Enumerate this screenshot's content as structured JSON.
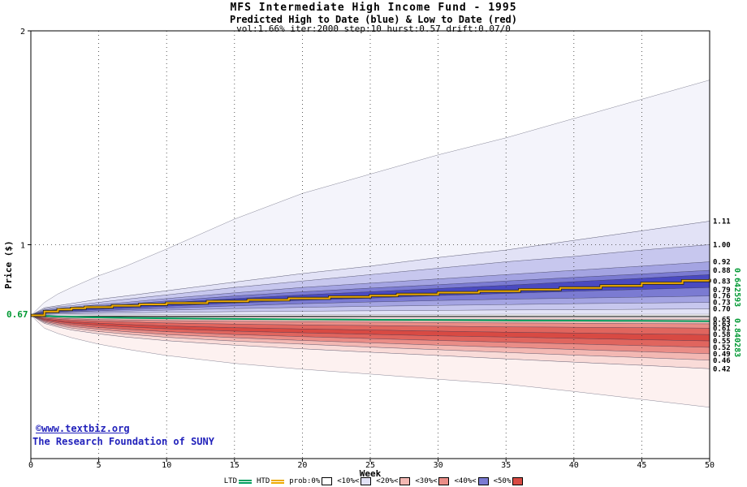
{
  "title": {
    "line1": "MFS Intermediate High Income Fund - 1995",
    "line2": "Predicted High to Date (blue) &  Low to Date (red)",
    "line3": "vol:1.66% iter:2000 step:10 hurst:0.57 drift:0.07/0"
  },
  "footer": {
    "copyright": "©www.textbiz.org",
    "org": "The Research Foundation of SUNY"
  },
  "chart_data": {
    "type": "area",
    "title": "MFS Intermediate High Income Fund - 1995",
    "subtitle": "Predicted High to Date (blue) &  Low to Date (red)",
    "params": "vol:1.66% iter:2000 step:10 hurst:0.57 drift:0.07/0",
    "xlabel": "Week",
    "ylabel": "Price ($)",
    "xlim": [
      0,
      50
    ],
    "ylim": [
      0,
      2
    ],
    "x_ticks": [
      0,
      5,
      10,
      15,
      20,
      25,
      30,
      35,
      40,
      45,
      50
    ],
    "y_ticks": [
      0,
      1,
      2
    ],
    "grid": true,
    "start_price": 0.67,
    "start_price_label": "0.67",
    "center_line_price": 0.665,
    "band_x": [
      0,
      1,
      2,
      3,
      5,
      7,
      10,
      15,
      20,
      25,
      30,
      35,
      40,
      45,
      50
    ],
    "high_fan": {
      "name": "high-to-date probability fan (blue)",
      "boundaries": [
        [
          0.67,
          0.73,
          0.77,
          0.8,
          0.855,
          0.9,
          0.98,
          1.12,
          1.24,
          1.33,
          1.42,
          1.5,
          1.59,
          1.68,
          1.77
        ],
        [
          0.67,
          0.705,
          0.715,
          0.725,
          0.745,
          0.76,
          0.785,
          0.825,
          0.865,
          0.9,
          0.94,
          0.975,
          1.02,
          1.065,
          1.11
        ],
        [
          0.67,
          0.7,
          0.71,
          0.715,
          0.73,
          0.745,
          0.765,
          0.8,
          0.83,
          0.86,
          0.89,
          0.92,
          0.945,
          0.975,
          1.0
        ],
        [
          0.67,
          0.695,
          0.703,
          0.708,
          0.72,
          0.73,
          0.748,
          0.775,
          0.8,
          0.82,
          0.84,
          0.86,
          0.88,
          0.9,
          0.92
        ],
        [
          0.67,
          0.69,
          0.698,
          0.703,
          0.712,
          0.722,
          0.737,
          0.76,
          0.78,
          0.797,
          0.813,
          0.83,
          0.847,
          0.863,
          0.88
        ],
        [
          0.67,
          0.687,
          0.694,
          0.699,
          0.707,
          0.715,
          0.728,
          0.748,
          0.765,
          0.78,
          0.795,
          0.81,
          0.827,
          0.843,
          0.86
        ],
        [
          0.67,
          0.682,
          0.687,
          0.69,
          0.697,
          0.703,
          0.712,
          0.727,
          0.74,
          0.75,
          0.762,
          0.772,
          0.782,
          0.791,
          0.8
        ],
        [
          0.67,
          0.679,
          0.683,
          0.686,
          0.691,
          0.696,
          0.703,
          0.714,
          0.724,
          0.732,
          0.739,
          0.745,
          0.75,
          0.755,
          0.76
        ],
        [
          0.67,
          0.677,
          0.68,
          0.682,
          0.686,
          0.689,
          0.694,
          0.701,
          0.707,
          0.712,
          0.716,
          0.72,
          0.724,
          0.727,
          0.73
        ],
        [
          0.67,
          0.674,
          0.676,
          0.677,
          0.679,
          0.681,
          0.684,
          0.687,
          0.689,
          0.691,
          0.693,
          0.695,
          0.696,
          0.698,
          0.7
        ],
        [
          0.67,
          0.671,
          0.671,
          0.672,
          0.672,
          0.672,
          0.673,
          0.673,
          0.674,
          0.674,
          0.674,
          0.675,
          0.675,
          0.675,
          0.675
        ]
      ],
      "colors": [
        "#f4f4fb",
        "#e2e2f6",
        "#c7c7ee",
        "#a4a4e2",
        "#7b7bd2",
        "#4a4ac0",
        "#7b7bd2",
        "#a4a4e2",
        "#c7c7ee",
        "#e2e2f6"
      ]
    },
    "low_fan": {
      "name": "low-to-date probability fan (red)",
      "boundaries": [
        [
          0.67,
          0.667,
          0.666,
          0.665,
          0.664,
          0.663,
          0.662,
          0.661,
          0.661,
          0.66,
          0.66,
          0.66,
          0.659,
          0.659,
          0.659
        ],
        [
          0.67,
          0.664,
          0.662,
          0.66,
          0.658,
          0.657,
          0.655,
          0.654,
          0.653,
          0.652,
          0.651,
          0.651,
          0.65,
          0.65,
          0.65
        ],
        [
          0.67,
          0.661,
          0.657,
          0.654,
          0.65,
          0.648,
          0.645,
          0.642,
          0.64,
          0.638,
          0.636,
          0.634,
          0.633,
          0.631,
          0.63
        ],
        [
          0.67,
          0.657,
          0.652,
          0.648,
          0.643,
          0.639,
          0.634,
          0.629,
          0.625,
          0.622,
          0.619,
          0.616,
          0.614,
          0.612,
          0.61
        ],
        [
          0.67,
          0.653,
          0.646,
          0.64,
          0.633,
          0.627,
          0.62,
          0.612,
          0.606,
          0.601,
          0.596,
          0.591,
          0.587,
          0.583,
          0.58
        ],
        [
          0.67,
          0.649,
          0.64,
          0.633,
          0.623,
          0.616,
          0.607,
          0.596,
          0.588,
          0.581,
          0.574,
          0.568,
          0.562,
          0.556,
          0.55
        ],
        [
          0.67,
          0.645,
          0.634,
          0.625,
          0.613,
          0.604,
          0.593,
          0.58,
          0.57,
          0.561,
          0.552,
          0.544,
          0.536,
          0.528,
          0.52
        ],
        [
          0.67,
          0.641,
          0.628,
          0.618,
          0.604,
          0.593,
          0.58,
          0.565,
          0.552,
          0.541,
          0.53,
          0.52,
          0.51,
          0.5,
          0.49
        ],
        [
          0.67,
          0.637,
          0.622,
          0.61,
          0.594,
          0.582,
          0.567,
          0.549,
          0.535,
          0.521,
          0.509,
          0.496,
          0.484,
          0.472,
          0.46
        ],
        [
          0.67,
          0.632,
          0.615,
          0.601,
          0.583,
          0.568,
          0.551,
          0.53,
          0.513,
          0.497,
          0.482,
          0.466,
          0.451,
          0.436,
          0.42
        ],
        [
          0.67,
          0.61,
          0.585,
          0.565,
          0.535,
          0.512,
          0.482,
          0.445,
          0.418,
          0.395,
          0.371,
          0.348,
          0.314,
          0.277,
          0.24
        ]
      ],
      "colors": [
        "#f9dbd8",
        "#f3b8b3",
        "#ea8d87",
        "#e0655e",
        "#d84a43",
        "#e0655e",
        "#ea8d87",
        "#f3b8b3",
        "#f9dbd8",
        "#fdf1f0"
      ]
    },
    "htd_line": {
      "label": "HTD",
      "color": "#eeaa00",
      "x": [
        0,
        1,
        2,
        3,
        4,
        6,
        8,
        10,
        13,
        16,
        19,
        22,
        25,
        27,
        30,
        33,
        36,
        39,
        42,
        45,
        48,
        50
      ],
      "y": [
        0.67,
        0.688,
        0.697,
        0.703,
        0.708,
        0.715,
        0.721,
        0.727,
        0.735,
        0.742,
        0.749,
        0.756,
        0.762,
        0.768,
        0.776,
        0.783,
        0.79,
        0.798,
        0.808,
        0.82,
        0.832,
        0.84
      ]
    },
    "ltd_line": {
      "label": "LTD",
      "color": "#00a060",
      "x": [
        0,
        2,
        4,
        7,
        10,
        15,
        20,
        25,
        30,
        35,
        40,
        45,
        50
      ],
      "y": [
        0.67,
        0.664,
        0.661,
        0.658,
        0.656,
        0.653,
        0.651,
        0.649,
        0.648,
        0.646,
        0.645,
        0.644,
        0.6426
      ]
    },
    "right_axis_labels": [
      "1.11",
      "1.00",
      "0.92",
      "0.88",
      "0.83",
      "0.79",
      "0.76",
      "0.73",
      "0.70",
      "0.65",
      "0.63",
      "0.61",
      "0.58",
      "0.55",
      "0.52",
      "0.49",
      "0.46",
      "0.42"
    ],
    "right_green_labels": [
      "0.642593",
      "0.840283"
    ],
    "legend": {
      "items": [
        {
          "label": "LTD",
          "type": "line",
          "color": "#00a060"
        },
        {
          "label": "HTD",
          "type": "line",
          "color": "#eeaa00"
        },
        {
          "label": "prob:0%",
          "type": "box",
          "color": "#ffffff"
        },
        {
          "label": "<10%<",
          "type": "box",
          "color": "#e2e2f6"
        },
        {
          "label": "<20%<",
          "type": "box",
          "color": "#f3b8b3"
        },
        {
          "label": "<30%<",
          "type": "box",
          "color": "#ea8d87"
        },
        {
          "label": "<40%<",
          "type": "box",
          "color": "#7b7bd2"
        },
        {
          "label": "<50%",
          "type": "box",
          "color": "#d84a43"
        }
      ]
    }
  }
}
